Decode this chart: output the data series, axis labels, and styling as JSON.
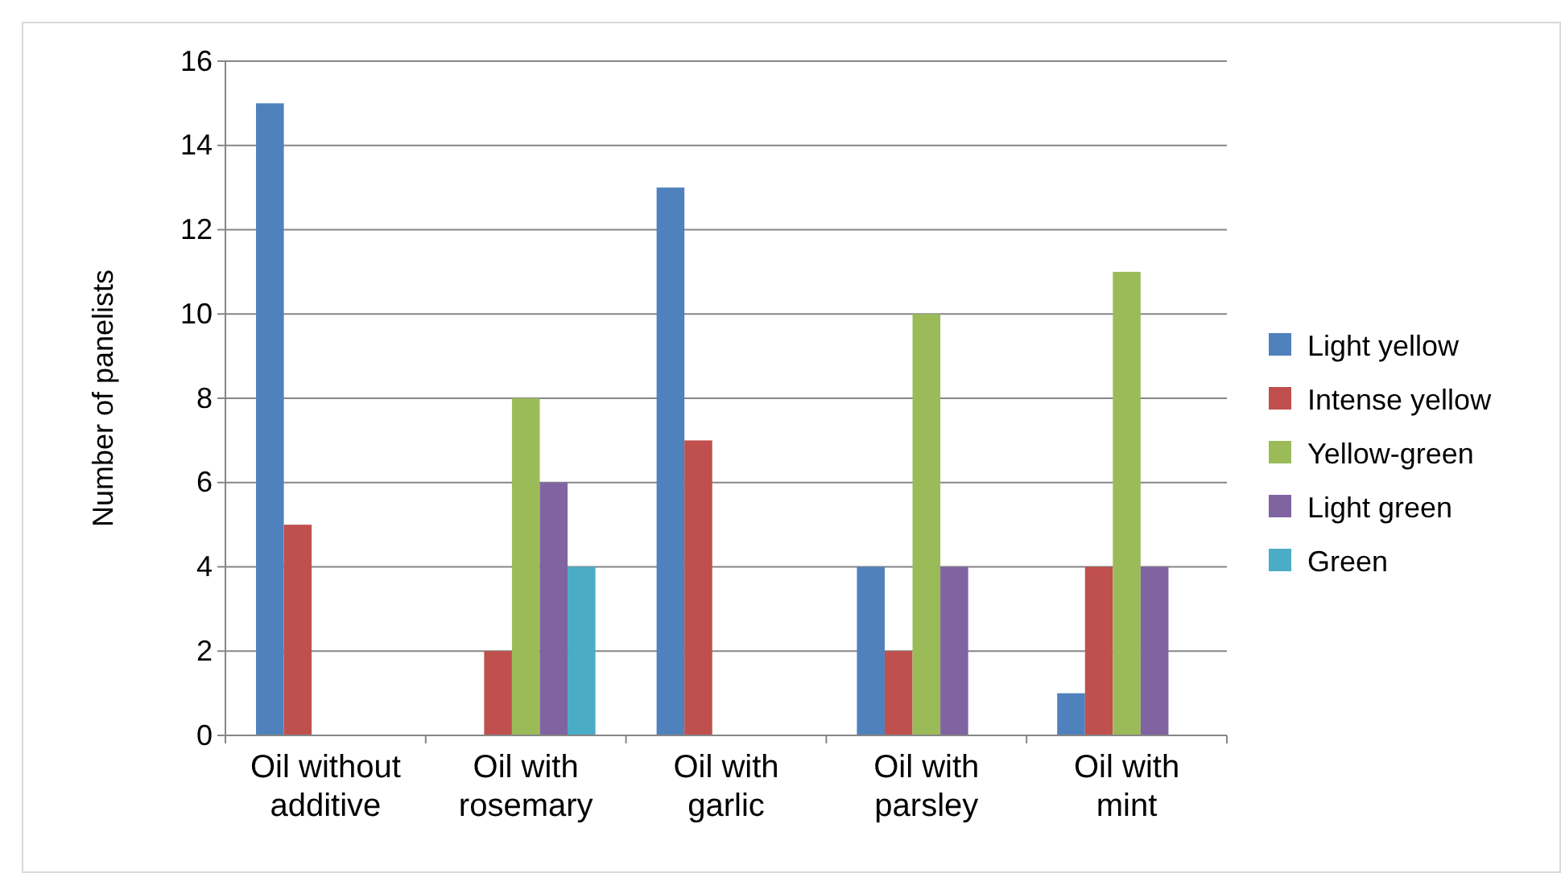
{
  "chart_data": {
    "type": "bar",
    "ylabel": "Number of panelists",
    "categories": [
      "Oil without additive",
      "Oil with rosemary",
      "Oil with garlic",
      "Oil with parsley",
      "Oil with mint"
    ],
    "series": [
      {
        "name": "Light yellow",
        "color": "#4f81bd",
        "values": [
          15,
          0,
          13,
          4,
          1
        ]
      },
      {
        "name": "Intense yellow",
        "color": "#c0504d",
        "values": [
          5,
          2,
          7,
          2,
          4
        ]
      },
      {
        "name": "Yellow-green",
        "color": "#9bbb59",
        "values": [
          0,
          8,
          0,
          10,
          11
        ]
      },
      {
        "name": "Light green",
        "color": "#8064a2",
        "values": [
          0,
          6,
          0,
          4,
          4
        ]
      },
      {
        "name": "Green",
        "color": "#4bacc6",
        "values": [
          0,
          4,
          0,
          0,
          0
        ]
      }
    ],
    "ylim": [
      0,
      16
    ],
    "yticks": [
      0,
      2,
      4,
      6,
      8,
      10,
      12,
      14,
      16
    ],
    "grid": "y",
    "legend": "right"
  }
}
